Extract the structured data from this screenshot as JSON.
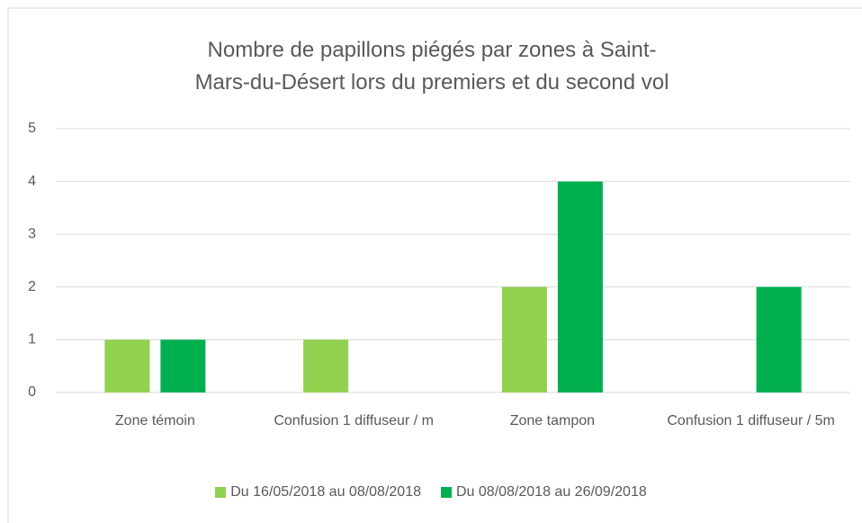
{
  "chart_data": {
    "type": "bar",
    "title": "Nombre de papillons piégés par zones à Saint-Mars-du-Désert lors du premiers et du second vol",
    "categories": [
      "Zone témoin",
      "Confusion 1 diffuseur / m",
      "Zone tampon",
      "Confusion 1 diffuseur / 5m"
    ],
    "series": [
      {
        "name": "Du 16/05/2018 au 08/08/2018",
        "color": "#92d050",
        "values": [
          1,
          1,
          2,
          0
        ]
      },
      {
        "name": "Du 08/08/2018 au 26/09/2018",
        "color": "#00b050",
        "values": [
          1,
          0,
          4,
          2
        ]
      }
    ],
    "ylim": [
      0,
      5
    ],
    "yticks": [
      0,
      1,
      2,
      3,
      4,
      5
    ],
    "grid": true,
    "legend": "bottom"
  }
}
